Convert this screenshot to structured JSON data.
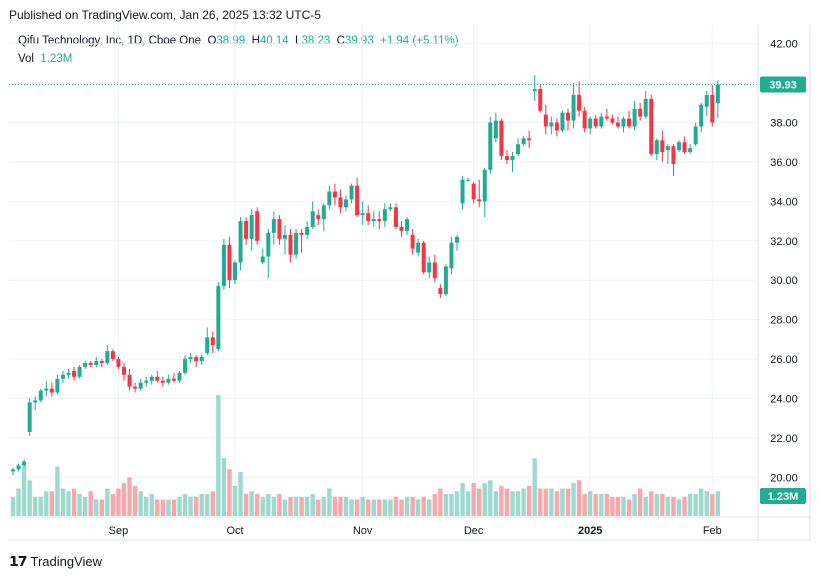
{
  "header": {
    "published": "Published on TradingView.com, Jan 26, 2025 13:32 UTC-5"
  },
  "legend": {
    "symbol": "Qifu Technology, Inc, 1D, Cboe One",
    "open_label": "O",
    "open": "38.99",
    "high_label": "H",
    "high": "40.14",
    "low_label": "L",
    "low": "38.23",
    "close_label": "C",
    "close": "39.93",
    "change": "+1.94 (+5.11%)",
    "vol_label": "Vol",
    "vol": "1.23M"
  },
  "footer": {
    "brand": "TradingView"
  },
  "colors": {
    "up": "#22ab94",
    "down": "#f23645",
    "vol_up": "#9ed9d0",
    "vol_down": "#f6a8ad",
    "grid": "#f0f3fa",
    "axis_text": "#131722"
  },
  "chart_data": {
    "type": "candlestick",
    "price_axis": {
      "ylim": [
        19,
        43
      ],
      "ticks": [
        "42.00",
        "40.00",
        "38.00",
        "36.00",
        "34.00",
        "32.00",
        "30.00",
        "28.00",
        "26.00",
        "24.00",
        "22.00",
        "20.00"
      ]
    },
    "last_price_label": "39.93",
    "volume_label": "1.23M",
    "x_ticks": [
      {
        "label": "Sep",
        "index": 19,
        "bold": false
      },
      {
        "label": "Oct",
        "index": 40,
        "bold": false
      },
      {
        "label": "Nov",
        "index": 63,
        "bold": false
      },
      {
        "label": "Dec",
        "index": 83,
        "bold": false
      },
      {
        "label": "2025",
        "index": 104,
        "bold": true
      },
      {
        "label": "Feb",
        "index": 126,
        "bold": false
      }
    ],
    "candles": [
      [
        20.3,
        20.5,
        20.1,
        20.4,
        0.35
      ],
      [
        20.4,
        20.7,
        20.3,
        20.6,
        0.5
      ],
      [
        20.6,
        20.9,
        20.5,
        20.8,
        0.9
      ],
      [
        22.3,
        24.0,
        22.1,
        23.8,
        0.65
      ],
      [
        23.8,
        24.1,
        23.4,
        23.9,
        0.35
      ],
      [
        23.9,
        24.5,
        23.8,
        24.4,
        0.35
      ],
      [
        24.4,
        24.9,
        24.1,
        24.5,
        0.45
      ],
      [
        24.5,
        24.8,
        24.1,
        24.3,
        0.45
      ],
      [
        24.3,
        25.2,
        24.2,
        25.0,
        0.9
      ],
      [
        25.0,
        25.4,
        24.8,
        25.2,
        0.5
      ],
      [
        25.2,
        25.5,
        25.0,
        25.3,
        0.45
      ],
      [
        25.4,
        25.6,
        24.9,
        25.1,
        0.5
      ],
      [
        25.1,
        25.7,
        25.0,
        25.6,
        0.4
      ],
      [
        25.6,
        25.9,
        25.5,
        25.8,
        0.35
      ],
      [
        25.8,
        25.9,
        25.6,
        25.7,
        0.45
      ],
      [
        25.7,
        26.1,
        25.6,
        25.9,
        0.3
      ],
      [
        25.9,
        26.0,
        25.6,
        25.8,
        0.3
      ],
      [
        25.8,
        26.7,
        25.7,
        26.4,
        0.5
      ],
      [
        26.4,
        26.5,
        25.9,
        26.0,
        0.4
      ],
      [
        26.0,
        26.1,
        25.5,
        25.6,
        0.5
      ],
      [
        25.6,
        25.8,
        24.9,
        25.2,
        0.6
      ],
      [
        25.2,
        25.5,
        24.4,
        24.6,
        0.7
      ],
      [
        24.6,
        24.8,
        24.3,
        24.5,
        0.55
      ],
      [
        24.5,
        25.0,
        24.4,
        24.8,
        0.45
      ],
      [
        24.8,
        25.1,
        24.6,
        24.9,
        0.35
      ],
      [
        24.9,
        25.2,
        24.7,
        25.1,
        0.4
      ],
      [
        25.1,
        25.4,
        24.8,
        24.9,
        0.3
      ],
      [
        24.9,
        25.1,
        24.6,
        24.8,
        0.3
      ],
      [
        24.8,
        25.2,
        24.7,
        25.0,
        0.3
      ],
      [
        25.0,
        25.3,
        24.8,
        24.9,
        0.3
      ],
      [
        24.9,
        25.4,
        24.8,
        25.3,
        0.35
      ],
      [
        25.3,
        26.2,
        25.2,
        26.0,
        0.4
      ],
      [
        26.0,
        26.3,
        25.8,
        26.1,
        0.35
      ],
      [
        26.1,
        26.2,
        25.6,
        25.9,
        0.35
      ],
      [
        25.9,
        26.2,
        25.7,
        26.1,
        0.4
      ],
      [
        26.3,
        27.6,
        26.2,
        27.1,
        0.4
      ],
      [
        27.1,
        27.4,
        26.3,
        26.7,
        0.45
      ],
      [
        26.5,
        29.9,
        26.4,
        29.7,
        2.2
      ],
      [
        29.7,
        32.1,
        29.5,
        31.8,
        1.05
      ],
      [
        31.8,
        32.2,
        29.6,
        30.0,
        0.85
      ],
      [
        30.0,
        31.0,
        29.8,
        30.9,
        0.55
      ],
      [
        30.9,
        33.2,
        30.5,
        33.0,
        0.8
      ],
      [
        33.0,
        33.2,
        31.8,
        32.1,
        0.4
      ],
      [
        32.1,
        33.6,
        31.5,
        33.3,
        0.45
      ],
      [
        33.5,
        33.7,
        31.8,
        32.0,
        0.4
      ],
      [
        30.9,
        31.6,
        30.8,
        31.2,
        0.35
      ],
      [
        31.2,
        32.6,
        30.1,
        32.4,
        0.4
      ],
      [
        32.4,
        33.5,
        31.8,
        33.1,
        0.35
      ],
      [
        33.1,
        33.3,
        31.8,
        32.1,
        0.4
      ],
      [
        32.1,
        32.8,
        31.3,
        32.3,
        0.3
      ],
      [
        32.3,
        32.6,
        30.9,
        31.3,
        0.35
      ],
      [
        31.3,
        32.6,
        31.1,
        32.4,
        0.35
      ],
      [
        32.4,
        32.6,
        31.4,
        32.3,
        0.35
      ],
      [
        32.3,
        33.0,
        32.1,
        32.7,
        0.35
      ],
      [
        32.7,
        34.0,
        32.6,
        33.5,
        0.4
      ],
      [
        33.3,
        33.6,
        32.8,
        33.1,
        0.3
      ],
      [
        33.1,
        33.9,
        32.5,
        33.8,
        0.35
      ],
      [
        33.8,
        34.8,
        33.6,
        34.5,
        0.5
      ],
      [
        34.5,
        34.9,
        33.8,
        34.2,
        0.35
      ],
      [
        34.2,
        34.6,
        33.4,
        33.7,
        0.35
      ],
      [
        33.7,
        34.3,
        33.5,
        34.1,
        0.35
      ],
      [
        34.1,
        34.9,
        33.9,
        34.8,
        0.3
      ],
      [
        34.8,
        35.2,
        33.2,
        33.3,
        0.3
      ],
      [
        33.3,
        34.0,
        32.8,
        33.4,
        0.35
      ],
      [
        33.4,
        33.8,
        32.8,
        33.0,
        0.3
      ],
      [
        33.0,
        33.5,
        32.7,
        33.1,
        0.3
      ],
      [
        33.1,
        33.5,
        32.6,
        33.0,
        0.3
      ],
      [
        33.0,
        33.9,
        32.7,
        33.6,
        0.3
      ],
      [
        33.6,
        33.9,
        33.5,
        33.7,
        0.3
      ],
      [
        33.7,
        33.9,
        32.6,
        32.7,
        0.35
      ],
      [
        32.7,
        33.0,
        32.2,
        32.5,
        0.3
      ],
      [
        32.5,
        33.2,
        32.3,
        33.1,
        0.35
      ],
      [
        32.3,
        32.6,
        31.3,
        31.6,
        0.35
      ],
      [
        31.4,
        32.1,
        31.2,
        31.9,
        0.3
      ],
      [
        31.9,
        32.0,
        30.3,
        30.4,
        0.35
      ],
      [
        30.4,
        31.2,
        30.1,
        30.9,
        0.3
      ],
      [
        30.9,
        31.3,
        29.9,
        30.1,
        0.4
      ],
      [
        29.6,
        29.8,
        29.1,
        29.3,
        0.5
      ],
      [
        29.3,
        30.8,
        29.2,
        30.7,
        0.4
      ],
      [
        30.6,
        32.2,
        30.3,
        31.9,
        0.4
      ],
      [
        31.9,
        32.3,
        31.5,
        32.2,
        0.45
      ],
      [
        33.9,
        35.3,
        33.6,
        35.1,
        0.6
      ],
      [
        35.1,
        35.2,
        35.0,
        35.1,
        0.45
      ],
      [
        34.9,
        35.0,
        33.9,
        34.1,
        0.6
      ],
      [
        34.1,
        35.1,
        33.7,
        34.0,
        0.5
      ],
      [
        34.0,
        35.7,
        33.2,
        35.6,
        0.6
      ],
      [
        35.6,
        38.3,
        35.4,
        38.0,
        0.65
      ],
      [
        37.2,
        38.5,
        37.0,
        38.1,
        0.45
      ],
      [
        38.1,
        38.2,
        36.1,
        36.3,
        0.55
      ],
      [
        36.3,
        36.6,
        35.9,
        36.1,
        0.5
      ],
      [
        36.1,
        36.5,
        35.5,
        36.3,
        0.45
      ],
      [
        36.4,
        37.2,
        36.3,
        36.9,
        0.45
      ],
      [
        36.9,
        37.3,
        36.8,
        37.2,
        0.5
      ],
      [
        37.2,
        37.6,
        36.7,
        37.1,
        0.55
      ],
      [
        39.6,
        40.4,
        39.1,
        39.7,
        1.05
      ],
      [
        39.7,
        39.9,
        38.5,
        38.6,
        0.5
      ],
      [
        38.4,
        38.9,
        37.4,
        37.8,
        0.5
      ],
      [
        37.8,
        38.3,
        37.4,
        38.0,
        0.5
      ],
      [
        38.0,
        38.2,
        37.3,
        37.6,
        0.45
      ],
      [
        37.6,
        38.6,
        37.5,
        38.5,
        0.5
      ],
      [
        38.5,
        38.7,
        37.6,
        38.1,
        0.5
      ],
      [
        38.1,
        40.0,
        37.7,
        39.4,
        0.6
      ],
      [
        39.4,
        40.1,
        38.3,
        38.6,
        0.65
      ],
      [
        38.6,
        38.8,
        37.5,
        37.7,
        0.4
      ],
      [
        37.7,
        38.3,
        37.4,
        38.2,
        0.45
      ],
      [
        38.2,
        38.4,
        37.7,
        37.8,
        0.4
      ],
      [
        37.8,
        38.5,
        37.7,
        38.3,
        0.4
      ],
      [
        38.3,
        38.7,
        38.1,
        38.2,
        0.4
      ],
      [
        38.2,
        38.4,
        37.9,
        38.0,
        0.35
      ],
      [
        38.0,
        38.3,
        37.7,
        37.8,
        0.35
      ],
      [
        37.8,
        38.3,
        37.5,
        38.2,
        0.35
      ],
      [
        38.2,
        38.6,
        37.7,
        37.8,
        0.3
      ],
      [
        37.8,
        39.1,
        37.6,
        38.7,
        0.4
      ],
      [
        38.7,
        39.0,
        38.1,
        38.3,
        0.5
      ],
      [
        38.3,
        39.6,
        38.2,
        39.2,
        0.35
      ],
      [
        39.2,
        39.4,
        36.3,
        36.4,
        0.45
      ],
      [
        36.4,
        37.2,
        36.1,
        37.1,
        0.4
      ],
      [
        37.1,
        37.6,
        36.0,
        36.5,
        0.4
      ],
      [
        36.6,
        36.9,
        35.9,
        36.8,
        0.35
      ],
      [
        36.8,
        36.9,
        35.3,
        35.9,
        0.35
      ],
      [
        36.6,
        37.1,
        36.5,
        37.0,
        0.3
      ],
      [
        37.0,
        37.3,
        36.4,
        36.5,
        0.35
      ],
      [
        36.5,
        36.9,
        36.4,
        36.7,
        0.4
      ],
      [
        36.9,
        38.0,
        36.8,
        37.8,
        0.4
      ],
      [
        37.8,
        39.0,
        37.5,
        38.9,
        0.5
      ],
      [
        38.8,
        39.6,
        38.3,
        39.4,
        0.45
      ],
      [
        39.4,
        39.9,
        37.8,
        38.0,
        0.4
      ],
      [
        38.99,
        40.14,
        38.23,
        39.93,
        0.45
      ]
    ]
  }
}
